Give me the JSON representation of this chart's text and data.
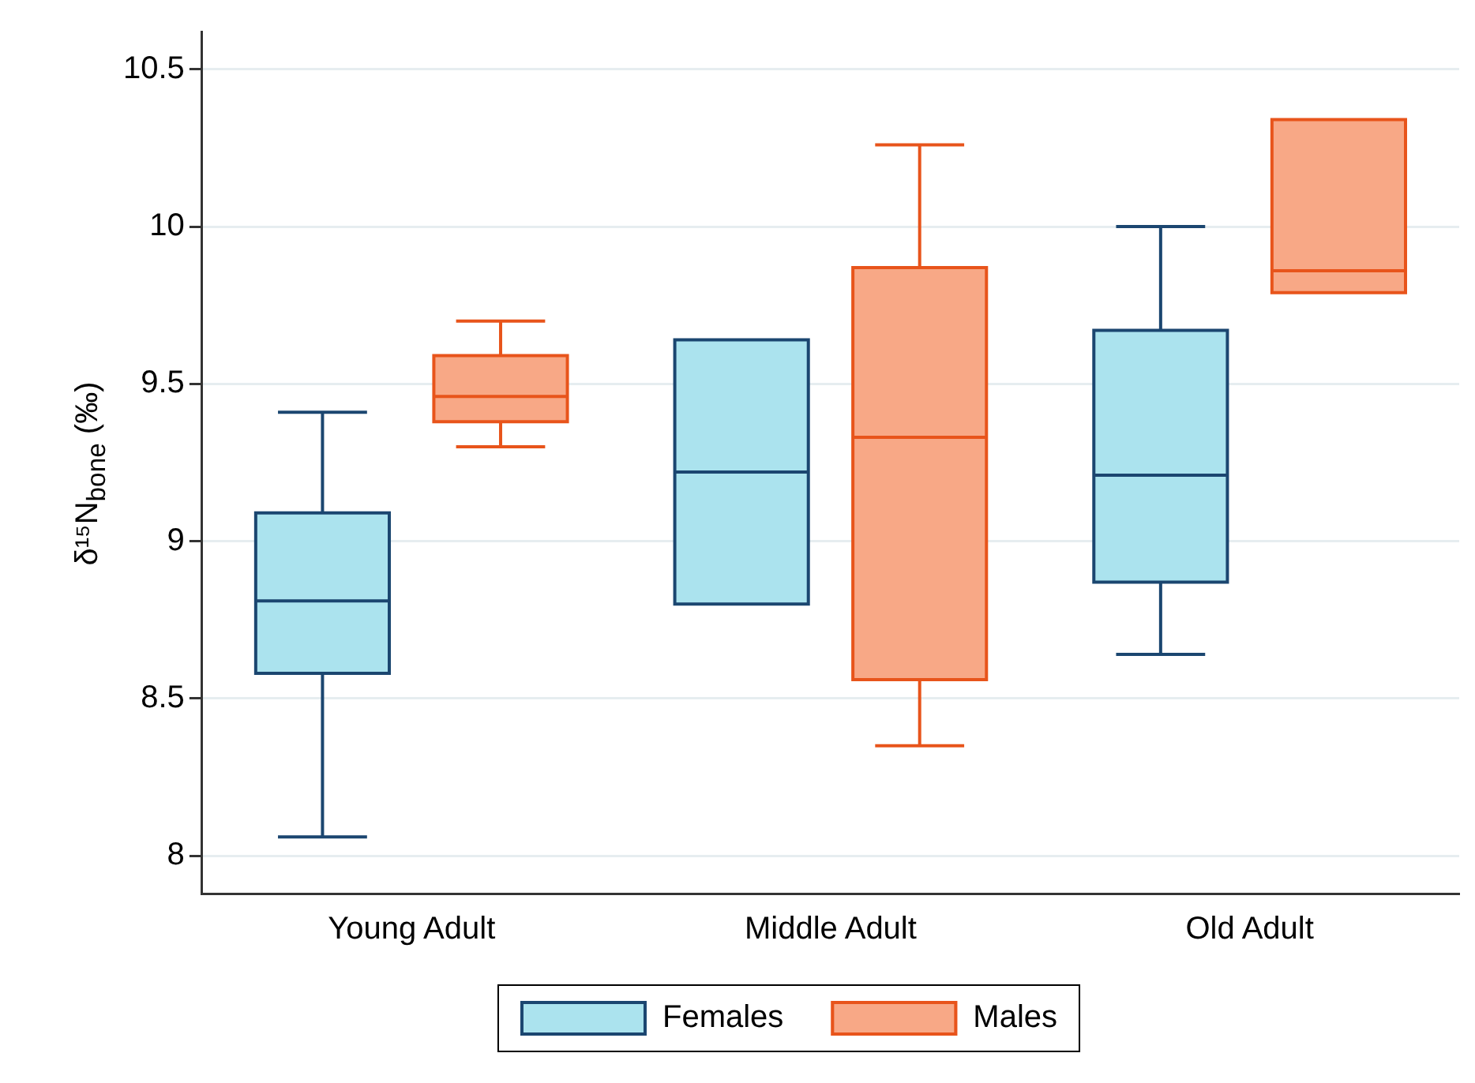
{
  "chart_data": {
    "type": "box",
    "ylabel": "δ¹⁵N$_{bone}$ (‰)",
    "categories": [
      "Young Adult",
      "Middle Adult",
      "Old Adult"
    ],
    "ylim": [
      7.88,
      10.62
    ],
    "yticks": [
      8,
      8.5,
      9,
      9.5,
      10,
      10.5
    ],
    "grid": "y",
    "legend": "bottom",
    "series": [
      {
        "name": "Females",
        "color": "#abe3ee",
        "boxes": [
          {
            "low": 8.06,
            "q1": 8.58,
            "median": 8.81,
            "q3": 9.09,
            "high": 9.41
          },
          {
            "low": 8.8,
            "q1": 8.8,
            "median": 9.22,
            "q3": 9.64,
            "high": 9.64
          },
          {
            "low": 8.64,
            "q1": 8.87,
            "median": 9.21,
            "q3": 9.67,
            "high": 10.0
          }
        ]
      },
      {
        "name": "Males",
        "color": "#f8a886",
        "boxes": [
          {
            "low": 9.3,
            "q1": 9.38,
            "median": 9.46,
            "q3": 9.59,
            "high": 9.7
          },
          {
            "low": 8.35,
            "q1": 8.56,
            "median": 9.33,
            "q3": 9.87,
            "high": 10.26
          },
          {
            "low": 9.79,
            "q1": 9.79,
            "median": 9.86,
            "q3": 10.34,
            "high": 10.34
          }
        ]
      }
    ]
  }
}
